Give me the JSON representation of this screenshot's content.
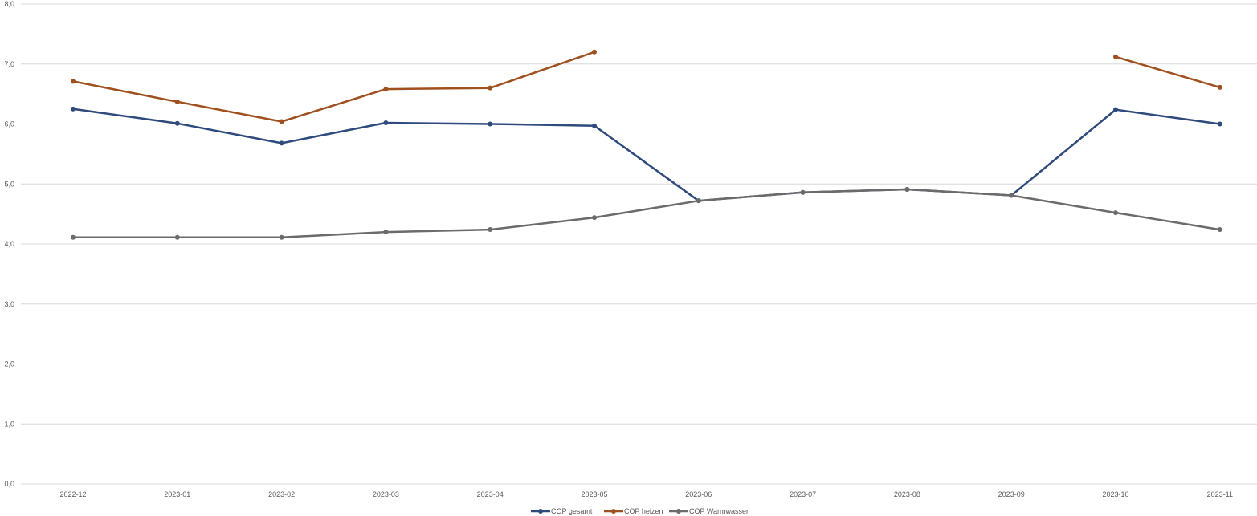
{
  "chart_data": {
    "type": "line",
    "title": "",
    "xlabel": "",
    "ylabel": "",
    "ylim": [
      0,
      8
    ],
    "ytick_step": 1,
    "ytick_labels": [
      "0,0",
      "1,0",
      "2,0",
      "3,0",
      "4,0",
      "5,0",
      "6,0",
      "7,0",
      "8,0"
    ],
    "grid": true,
    "legend_position": "bottom",
    "categories": [
      "2022-12",
      "2023-01",
      "2023-02",
      "2023-03",
      "2023-04",
      "2023-05",
      "2023-06",
      "2023-07",
      "2023-08",
      "2023-09",
      "2023-10",
      "2023-11"
    ],
    "series": [
      {
        "name": "COP gesamt",
        "color": "#2f4a7c",
        "values": [
          6.25,
          6.01,
          5.68,
          6.02,
          6.0,
          5.97,
          4.72,
          4.86,
          4.91,
          4.81,
          6.24,
          6.0
        ]
      },
      {
        "name": "COP heizen",
        "color": "#a0501e",
        "values": [
          6.71,
          6.37,
          6.04,
          6.58,
          6.6,
          7.2,
          null,
          null,
          null,
          null,
          7.12,
          6.61
        ]
      },
      {
        "name": "COP Warmwasser",
        "color": "#6b6b6b",
        "values": [
          4.11,
          4.11,
          4.11,
          4.2,
          4.24,
          4.44,
          4.72,
          4.86,
          4.91,
          4.81,
          4.52,
          4.24
        ]
      }
    ]
  }
}
